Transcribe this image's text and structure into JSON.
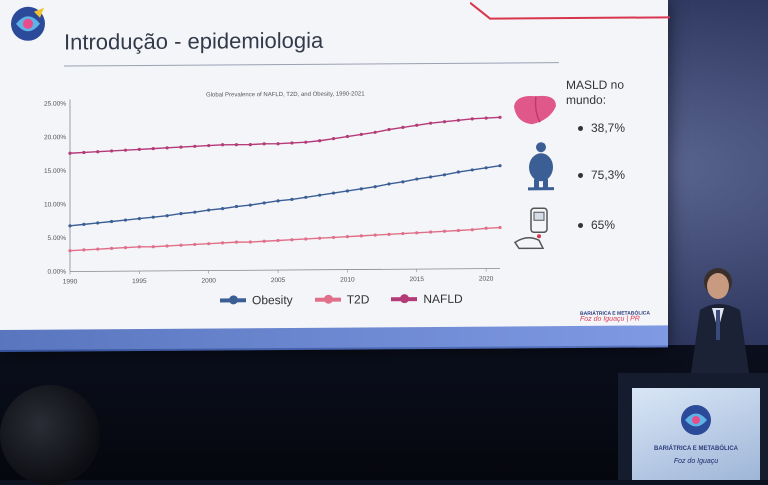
{
  "slide": {
    "title": "Introdução - epidemiologia",
    "sponsor_line1": "BARIÁTRICA E METABÓLICA",
    "sponsor_line2": "Foz do Iguaçu | PR"
  },
  "chart_data": {
    "type": "line",
    "title": "Global Prevalence of NAFLD, T2D, and Obesity, 1990-2021",
    "x": [
      1990,
      1991,
      1992,
      1993,
      1994,
      1995,
      1996,
      1997,
      1998,
      1999,
      2000,
      2001,
      2002,
      2003,
      2004,
      2005,
      2006,
      2007,
      2008,
      2009,
      2010,
      2011,
      2012,
      2013,
      2014,
      2015,
      2016,
      2017,
      2018,
      2019,
      2020,
      2021
    ],
    "xticks": [
      "1990",
      "1995",
      "2000",
      "2005",
      "2010",
      "2015",
      "2020"
    ],
    "yticks": [
      "0.00%",
      "5.00%",
      "10.00%",
      "15.00%",
      "20.00%",
      "25.00%"
    ],
    "ylim": [
      0,
      25
    ],
    "series": [
      {
        "name": "Obesity",
        "color": "#3b5f95",
        "values": [
          6.8,
          7.0,
          7.2,
          7.4,
          7.6,
          7.8,
          8.0,
          8.2,
          8.5,
          8.7,
          9.0,
          9.2,
          9.5,
          9.7,
          10.0,
          10.3,
          10.5,
          10.8,
          11.1,
          11.4,
          11.7,
          12.0,
          12.3,
          12.7,
          13.0,
          13.4,
          13.7,
          14.0,
          14.4,
          14.7,
          15.0,
          15.3
        ]
      },
      {
        "name": "T2D",
        "color": "#e0708a",
        "values": [
          3.1,
          3.2,
          3.3,
          3.4,
          3.5,
          3.6,
          3.6,
          3.7,
          3.8,
          3.9,
          4.0,
          4.1,
          4.2,
          4.2,
          4.3,
          4.4,
          4.5,
          4.6,
          4.7,
          4.8,
          4.9,
          5.0,
          5.1,
          5.2,
          5.3,
          5.4,
          5.5,
          5.6,
          5.7,
          5.8,
          6.0,
          6.1
        ]
      },
      {
        "name": "NAFLD",
        "color": "#b43a78",
        "values": [
          17.6,
          17.7,
          17.8,
          17.9,
          18.0,
          18.1,
          18.2,
          18.3,
          18.4,
          18.5,
          18.6,
          18.7,
          18.7,
          18.7,
          18.8,
          18.8,
          18.9,
          19.0,
          19.2,
          19.5,
          19.8,
          20.1,
          20.4,
          20.8,
          21.1,
          21.4,
          21.7,
          21.9,
          22.1,
          22.3,
          22.4,
          22.5
        ]
      }
    ]
  },
  "masld": {
    "heading": "MASLD no mundo:",
    "stats": [
      "38,7%",
      "75,3%",
      "65%"
    ]
  },
  "icons": [
    "liver-icon",
    "obese-person-icon",
    "glucometer-icon"
  ],
  "podium": {
    "line1": "BARIÁTRICA E METABÓLICA",
    "line2": "Foz do Iguaçu"
  }
}
